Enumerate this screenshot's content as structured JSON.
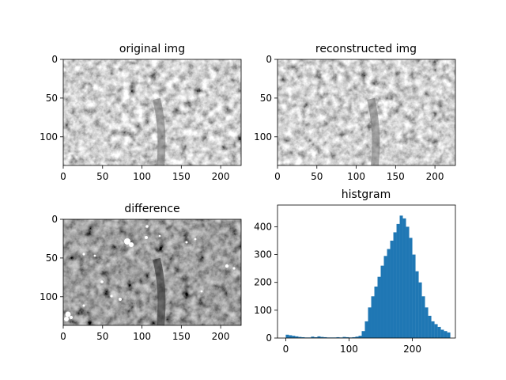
{
  "chart_data": [
    {
      "type": "heatmap",
      "title": "original img",
      "image_size": [
        226,
        137
      ],
      "xticks": [
        0,
        50,
        100,
        150,
        200
      ],
      "yticks": [
        0,
        50,
        100
      ],
      "xlim": [
        0,
        226
      ],
      "ylim": [
        137,
        0
      ],
      "colormap": "gray"
    },
    {
      "type": "heatmap",
      "title": "reconstructed img",
      "image_size": [
        226,
        137
      ],
      "xticks": [
        0,
        50,
        100,
        150,
        200
      ],
      "yticks": [
        0,
        50,
        100
      ],
      "xlim": [
        0,
        226
      ],
      "ylim": [
        137,
        0
      ],
      "colormap": "gray"
    },
    {
      "type": "heatmap",
      "title": "difference",
      "image_size": [
        226,
        137
      ],
      "xticks": [
        0,
        50,
        100,
        150,
        200
      ],
      "yticks": [
        0,
        50,
        100
      ],
      "xlim": [
        0,
        226
      ],
      "ylim": [
        137,
        0
      ],
      "colormap": "gray"
    },
    {
      "type": "bar",
      "title": "histgram",
      "color": "#1f77b4",
      "xlim": [
        -13,
        268
      ],
      "ylim": [
        0,
        478
      ],
      "xticks": [
        0,
        100,
        200
      ],
      "yticks": [
        0,
        100,
        200,
        300,
        400
      ],
      "bins": {
        "x": [
          0,
          5,
          10,
          15,
          20,
          25,
          30,
          35,
          40,
          45,
          50,
          55,
          60,
          65,
          70,
          75,
          80,
          85,
          90,
          95,
          100,
          105,
          110,
          115,
          120,
          125,
          130,
          135,
          140,
          145,
          150,
          155,
          160,
          165,
          170,
          175,
          180,
          185,
          190,
          195,
          200,
          205,
          210,
          215,
          220,
          225,
          230,
          235,
          240,
          245,
          250,
          255
        ],
        "values": [
          12,
          10,
          8,
          6,
          4,
          3,
          2,
          2,
          5,
          3,
          6,
          4,
          3,
          2,
          2,
          2,
          3,
          2,
          4,
          3,
          2,
          3,
          5,
          8,
          25,
          60,
          110,
          150,
          185,
          220,
          260,
          295,
          320,
          350,
          380,
          410,
          440,
          430,
          400,
          360,
          300,
          240,
          200,
          150,
          110,
          80,
          60,
          50,
          40,
          30,
          25,
          20
        ]
      }
    }
  ]
}
